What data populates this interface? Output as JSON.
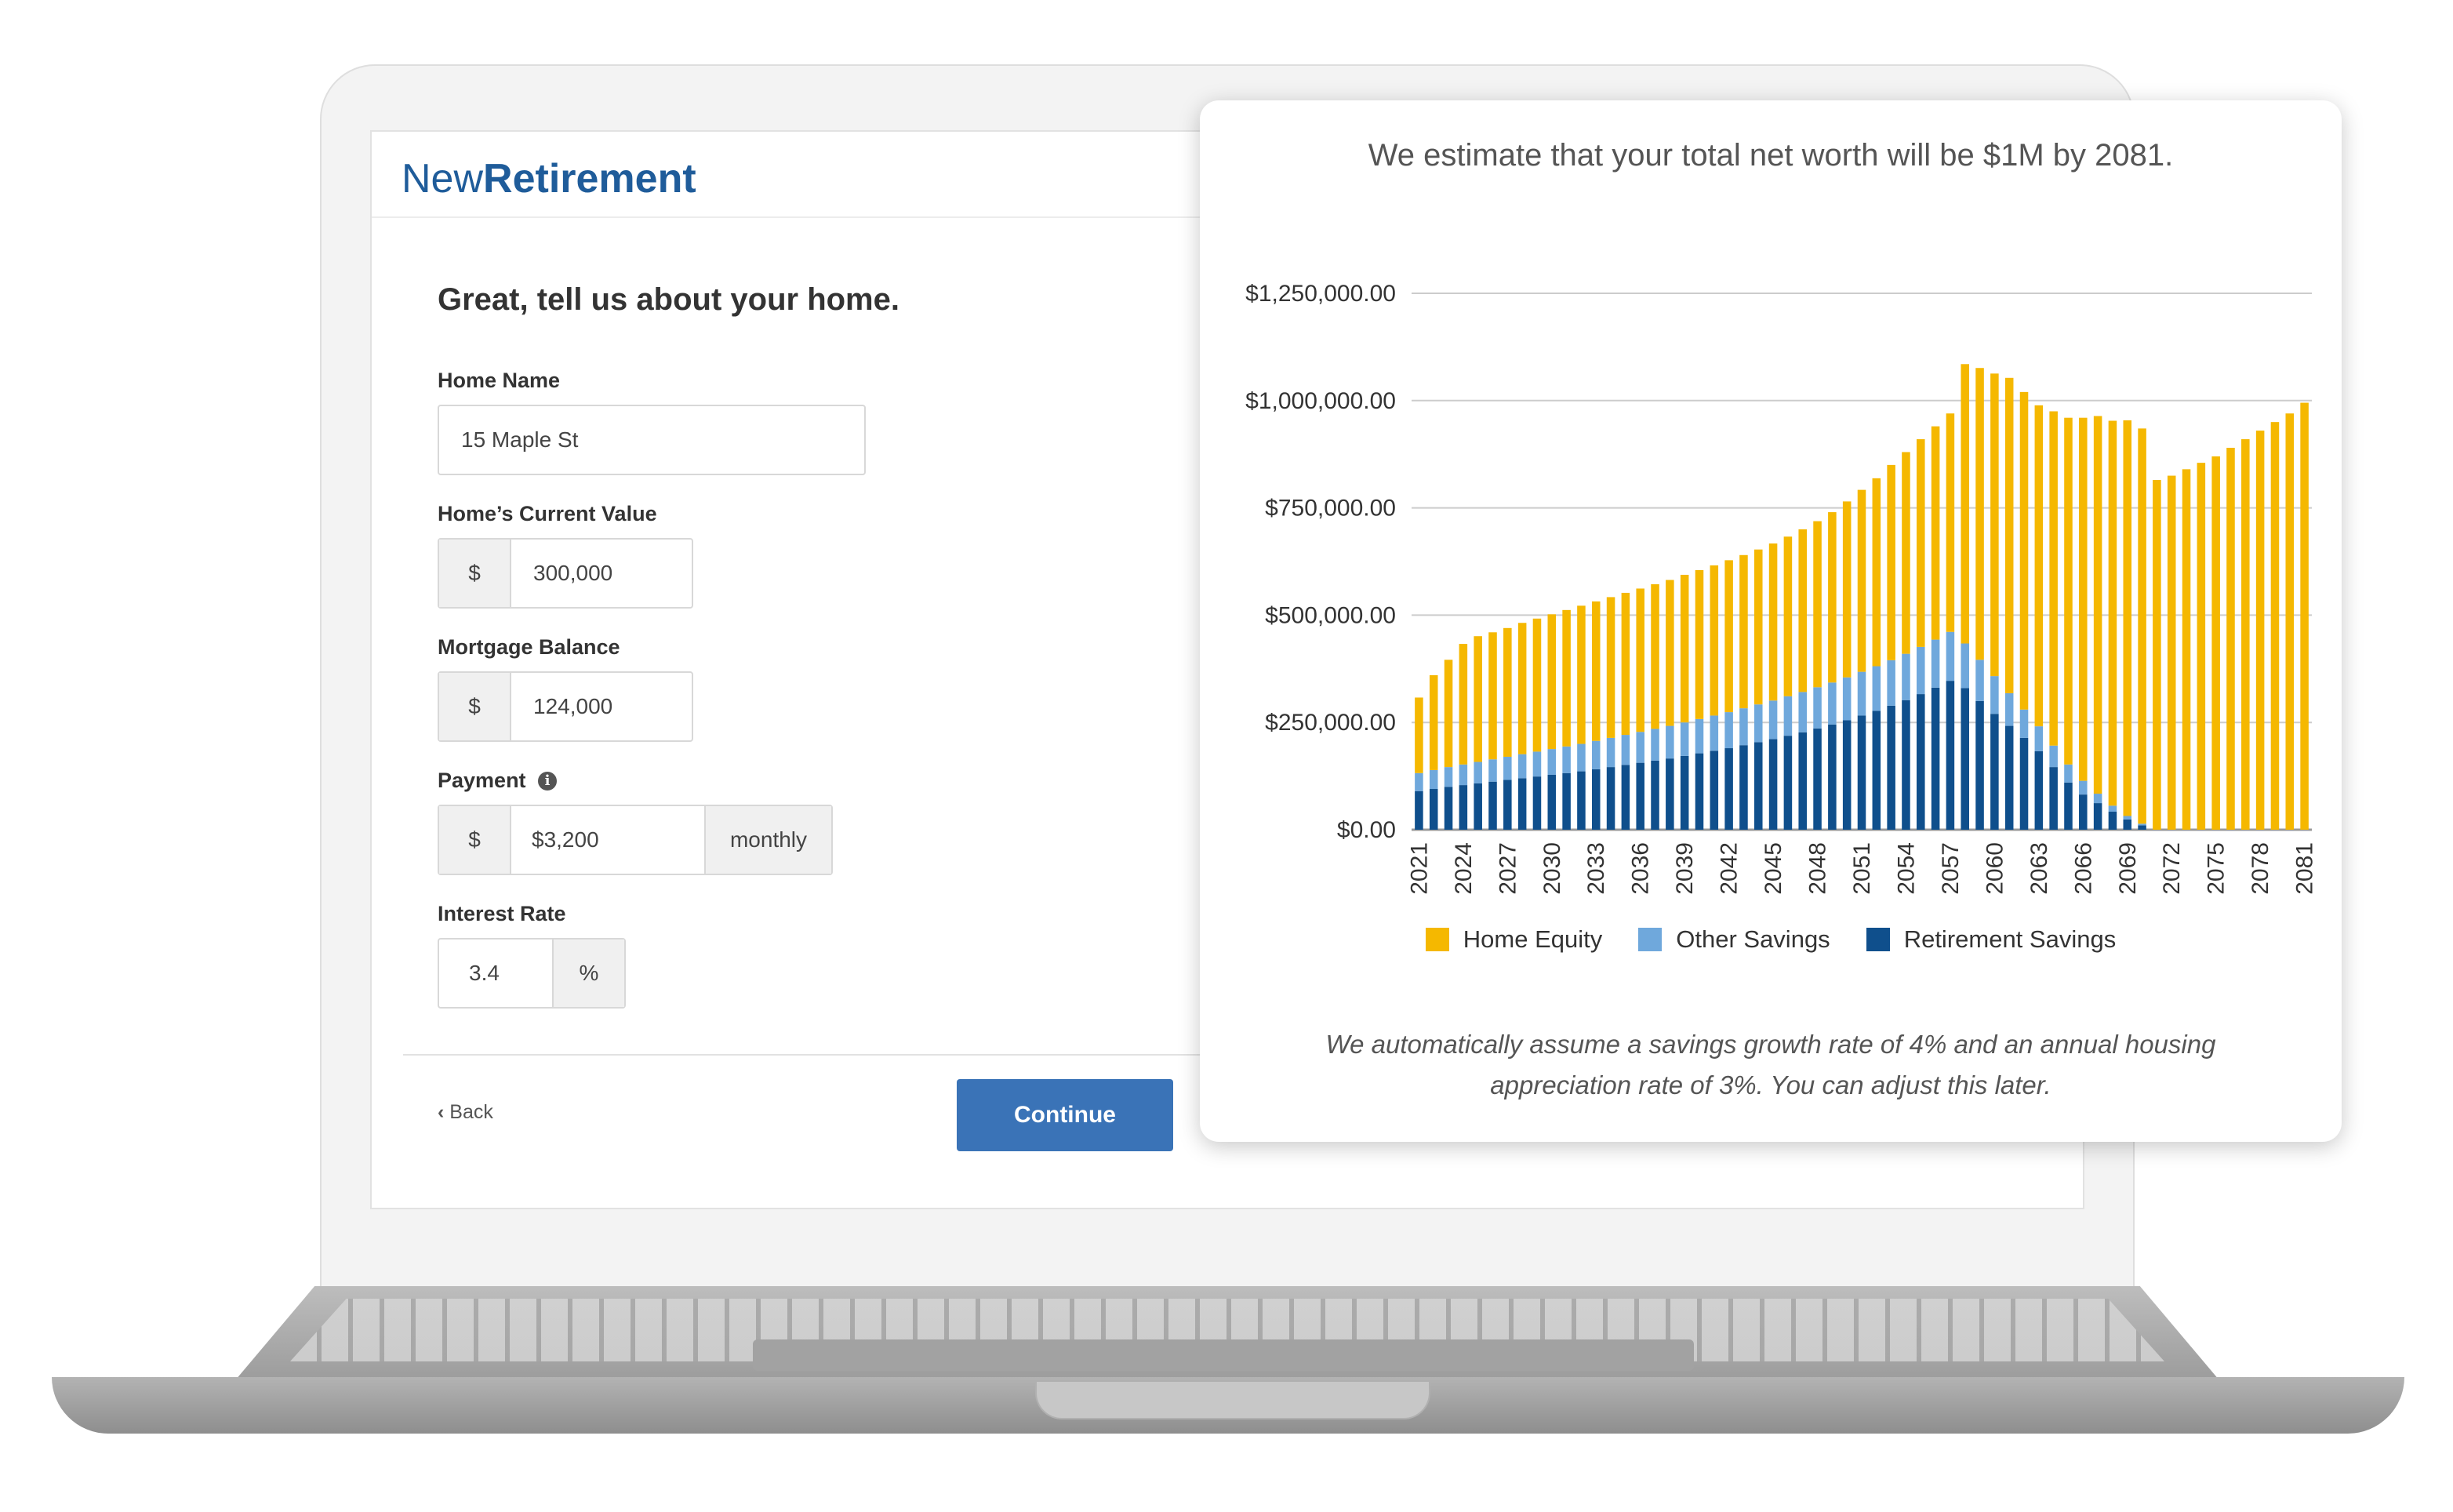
{
  "app": {
    "logo_light": "New",
    "logo_bold": "Retirement"
  },
  "form": {
    "title": "Great, tell us about your home.",
    "home_name": {
      "label": "Home Name",
      "value": "15 Maple St"
    },
    "current_value": {
      "label": "Home’s Current Value",
      "prefix": "$",
      "value": "300,000"
    },
    "mortgage_balance": {
      "label": "Mortgage Balance",
      "prefix": "$",
      "value": "124,000"
    },
    "payment": {
      "label": "Payment",
      "prefix": "$",
      "value": "$3,200",
      "suffix": "monthly",
      "info_icon": "info-icon"
    },
    "interest_rate": {
      "label": "Interest Rate",
      "value": "3.4",
      "suffix": "%"
    },
    "back_label": "Back",
    "continue_label": "Continue"
  },
  "card": {
    "headline": "We estimate that your total net worth will be $1M by 2081.",
    "note": "We automatically assume a savings growth rate of 4% and an annual housing appreciation rate of 3%. You can adjust this later."
  },
  "chart_data": {
    "type": "bar",
    "stacked": true,
    "title": "",
    "xlabel": "",
    "ylabel": "",
    "ylim": [
      0,
      1250000
    ],
    "yticks": [
      0,
      250000,
      500000,
      750000,
      1000000,
      1250000
    ],
    "ytick_labels": [
      "$0.00",
      "$250,000.00",
      "$500,000.00",
      "$750,000.00",
      "$1,000,000.00",
      "$1,250,000.00"
    ],
    "xtick_labels": [
      "2021",
      "2024",
      "2027",
      "2030",
      "2033",
      "2036",
      "2039",
      "2042",
      "2045",
      "2048",
      "2051",
      "2054",
      "2057",
      "2060",
      "2063",
      "2066",
      "2069",
      "2072",
      "2075",
      "2078",
      "2081"
    ],
    "grid": true,
    "legend_position": "bottom",
    "categories": [
      "2021",
      "2022",
      "2023",
      "2024",
      "2025",
      "2026",
      "2027",
      "2028",
      "2029",
      "2030",
      "2031",
      "2032",
      "2033",
      "2034",
      "2035",
      "2036",
      "2037",
      "2038",
      "2039",
      "2040",
      "2041",
      "2042",
      "2043",
      "2044",
      "2045",
      "2046",
      "2047",
      "2048",
      "2049",
      "2050",
      "2051",
      "2052",
      "2053",
      "2054",
      "2055",
      "2056",
      "2057",
      "2058",
      "2059",
      "2060",
      "2061",
      "2062",
      "2063",
      "2064",
      "2065",
      "2066",
      "2067",
      "2068",
      "2069",
      "2070",
      "2071",
      "2072",
      "2073",
      "2074",
      "2075",
      "2076",
      "2077",
      "2078",
      "2079",
      "2080",
      "2081"
    ],
    "series": [
      {
        "name": "Retirement Savings",
        "color": "#0f4f8c",
        "values": [
          90000,
          95000,
          100000,
          104000,
          108000,
          112000,
          116000,
          120000,
          124000,
          128000,
          132000,
          136000,
          141000,
          146000,
          151000,
          156000,
          161000,
          166000,
          172000,
          178000,
          184000,
          190000,
          197000,
          204000,
          211000,
          219000,
          227000,
          236000,
          245000,
          255000,
          266000,
          277000,
          289000,
          302000,
          316000,
          331000,
          347000,
          330000,
          300000,
          270000,
          242000,
          214000,
          183000,
          146000,
          110000,
          82000,
          62000,
          42000,
          24000,
          10000,
          0,
          0,
          0,
          0,
          0,
          0,
          0,
          0,
          0,
          0,
          0
        ]
      },
      {
        "name": "Other Savings",
        "color": "#6fa8dc",
        "values": [
          42000,
          44000,
          46000,
          48000,
          50000,
          52000,
          54000,
          56000,
          58000,
          60000,
          62000,
          64000,
          66000,
          68000,
          70000,
          72000,
          74000,
          76000,
          78000,
          80000,
          82000,
          84000,
          86000,
          88000,
          90000,
          92000,
          94000,
          96000,
          98000,
          100000,
          102000,
          104000,
          106000,
          108000,
          110000,
          112000,
          114000,
          104000,
          96000,
          88000,
          76000,
          66000,
          58000,
          50000,
          42000,
          32000,
          22000,
          14000,
          8000,
          4000,
          0,
          0,
          0,
          0,
          0,
          0,
          0,
          0,
          0,
          0,
          0
        ]
      },
      {
        "name": "Home Equity",
        "color": "#f5b800",
        "values": [
          176000,
          221000,
          250000,
          281000,
          293000,
          296000,
          300000,
          306000,
          310000,
          314000,
          318000,
          322000,
          325000,
          328000,
          331000,
          334000,
          337000,
          340000,
          344000,
          347000,
          350000,
          354000,
          357000,
          361000,
          366000,
          372000,
          379000,
          387000,
          397000,
          410000,
          424000,
          438000,
          455000,
          470000,
          484000,
          497000,
          509000,
          651000,
          680000,
          705000,
          735000,
          740000,
          748000,
          779000,
          808000,
          846000,
          880000,
          897000,
          922000,
          921000,
          815000,
          825000,
          840000,
          855000,
          870000,
          890000,
          910000,
          930000,
          950000,
          970000,
          995000
        ]
      }
    ]
  }
}
